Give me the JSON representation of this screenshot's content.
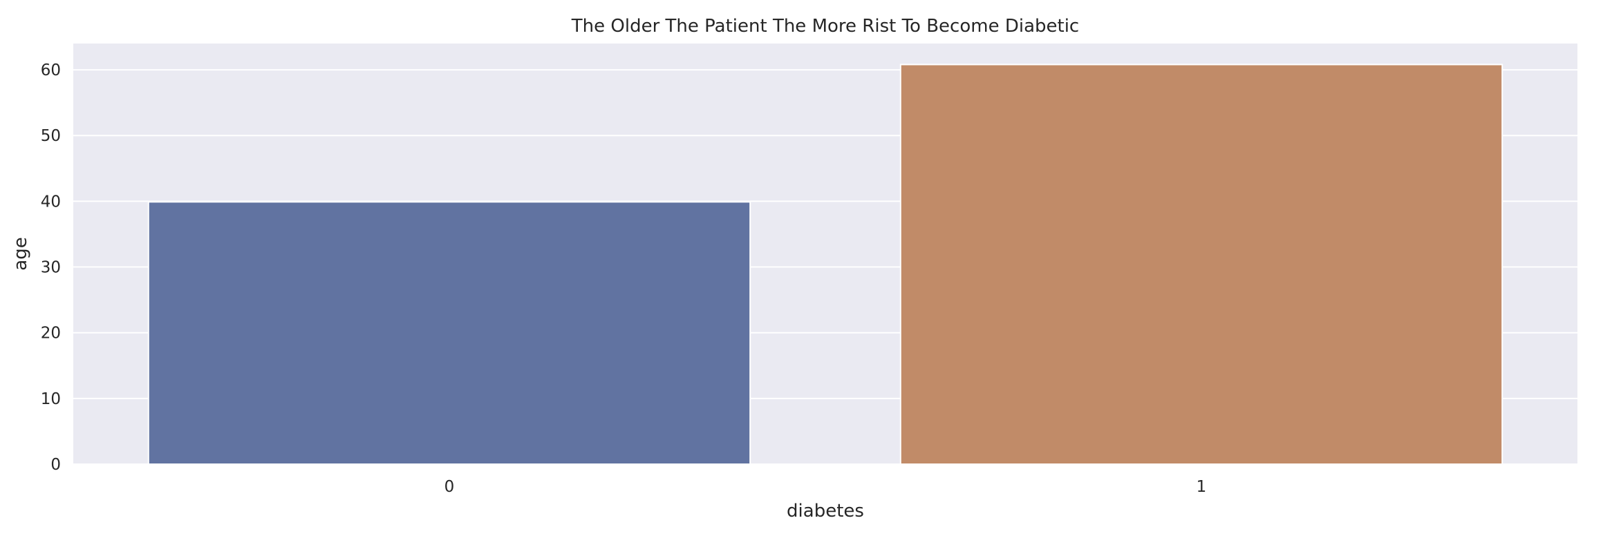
{
  "chart_data": {
    "type": "bar",
    "title": "The Older The Patient The More Rist To Become Diabetic",
    "xlabel": "diabetes",
    "ylabel": "age",
    "categories": [
      "0",
      "1"
    ],
    "values": [
      39.9,
      60.8
    ],
    "ylim": [
      0,
      64
    ],
    "yticks": [
      0,
      10,
      20,
      30,
      40,
      50,
      60
    ],
    "grid": true,
    "colors": [
      "#6173a1",
      "#c18b68"
    ],
    "background": "#eaeaf2"
  }
}
